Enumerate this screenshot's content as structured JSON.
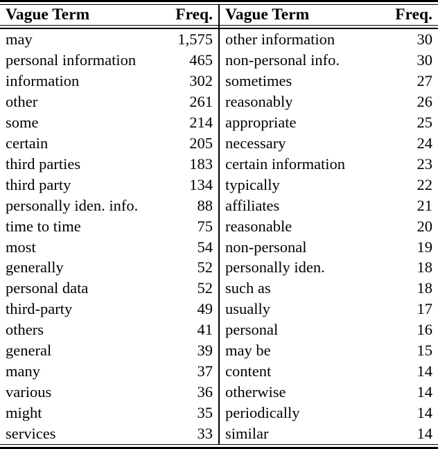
{
  "table": {
    "header": {
      "term_label": "Vague Term",
      "freq_label": "Freq."
    },
    "left_rows": [
      {
        "term": "may",
        "freq": "1,575"
      },
      {
        "term": "personal information",
        "freq": "465"
      },
      {
        "term": "information",
        "freq": "302"
      },
      {
        "term": "other",
        "freq": "261"
      },
      {
        "term": "some",
        "freq": "214"
      },
      {
        "term": "certain",
        "freq": "205"
      },
      {
        "term": "third parties",
        "freq": "183"
      },
      {
        "term": "third party",
        "freq": "134"
      },
      {
        "term": "personally iden. info.",
        "freq": "88"
      },
      {
        "term": "time to time",
        "freq": "75"
      },
      {
        "term": "most",
        "freq": "54"
      },
      {
        "term": "generally",
        "freq": "52"
      },
      {
        "term": "personal data",
        "freq": "52"
      },
      {
        "term": "third-party",
        "freq": "49"
      },
      {
        "term": "others",
        "freq": "41"
      },
      {
        "term": "general",
        "freq": "39"
      },
      {
        "term": "many",
        "freq": "37"
      },
      {
        "term": "various",
        "freq": "36"
      },
      {
        "term": "might",
        "freq": "35"
      },
      {
        "term": "services",
        "freq": "33"
      }
    ],
    "right_rows": [
      {
        "term": "other information",
        "freq": "30"
      },
      {
        "term": "non-personal info.",
        "freq": "30"
      },
      {
        "term": "sometimes",
        "freq": "27"
      },
      {
        "term": "reasonably",
        "freq": "26"
      },
      {
        "term": "appropriate",
        "freq": "25"
      },
      {
        "term": "necessary",
        "freq": "24"
      },
      {
        "term": "certain information",
        "freq": "23"
      },
      {
        "term": "typically",
        "freq": "22"
      },
      {
        "term": "affiliates",
        "freq": "21"
      },
      {
        "term": "reasonable",
        "freq": "20"
      },
      {
        "term": "non-personal",
        "freq": "19"
      },
      {
        "term": "personally iden.",
        "freq": "18"
      },
      {
        "term": "such as",
        "freq": "18"
      },
      {
        "term": "usually",
        "freq": "17"
      },
      {
        "term": "personal",
        "freq": "16"
      },
      {
        "term": "may be",
        "freq": "15"
      },
      {
        "term": "content",
        "freq": "14"
      },
      {
        "term": "otherwise",
        "freq": "14"
      },
      {
        "term": "periodically",
        "freq": "14"
      },
      {
        "term": "similar",
        "freq": "14"
      }
    ]
  }
}
